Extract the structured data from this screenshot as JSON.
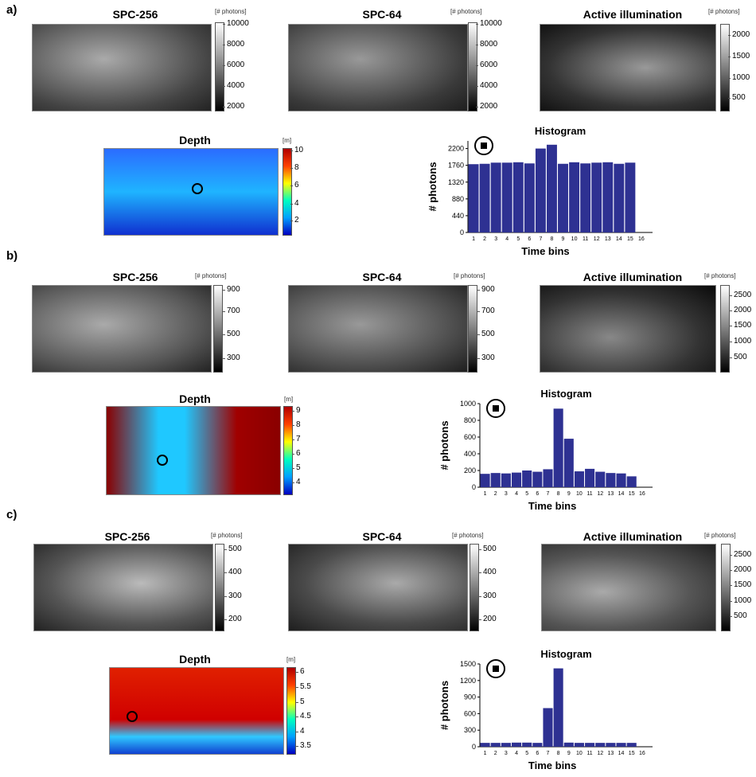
{
  "panels": [
    {
      "label": "a)",
      "spc256": {
        "title": "SPC-256",
        "unit": "[# photons]",
        "ticks": [
          "10000",
          "8000",
          "6000",
          "4000",
          "2000"
        ]
      },
      "spc64": {
        "title": "SPC-64",
        "unit": "[# photons]",
        "ticks": [
          "10000",
          "8000",
          "6000",
          "4000",
          "2000"
        ]
      },
      "active": {
        "title": "Active illumination",
        "unit": "[# photons]",
        "ticks": [
          "2000",
          "1500",
          "1000",
          "500"
        ]
      },
      "depth": {
        "title": "Depth",
        "unit": "[m]",
        "ticks": [
          "10",
          "8",
          "6",
          "4",
          "2"
        ]
      }
    },
    {
      "label": "b)",
      "spc256": {
        "title": "SPC-256",
        "unit": "[# photons]",
        "ticks": [
          "900",
          "700",
          "500",
          "300"
        ]
      },
      "spc64": {
        "title": "SPC-64",
        "unit": "[# photons]",
        "ticks": [
          "900",
          "700",
          "500",
          "300"
        ]
      },
      "active": {
        "title": "Active illumination",
        "unit": "[# photons]",
        "ticks": [
          "2500",
          "2000",
          "1500",
          "1000",
          "500"
        ]
      },
      "depth": {
        "title": "Depth",
        "unit": "[m]",
        "ticks": [
          "9",
          "8",
          "7",
          "6",
          "5",
          "4"
        ]
      }
    },
    {
      "label": "c)",
      "spc256": {
        "title": "SPC-256",
        "unit": "[# photons]",
        "ticks": [
          "500",
          "400",
          "300",
          "200"
        ]
      },
      "spc64": {
        "title": "SPC-64",
        "unit": "[# photons]",
        "ticks": [
          "500",
          "400",
          "300",
          "200"
        ]
      },
      "active": {
        "title": "Active illumination",
        "unit": "[# photons]",
        "ticks": [
          "2500",
          "2000",
          "1500",
          "1000",
          "500"
        ]
      },
      "depth": {
        "title": "Depth",
        "unit": "[m]",
        "ticks": [
          "6",
          "5.5",
          "5",
          "4.5",
          "4",
          "3.5"
        ]
      }
    }
  ],
  "colors": {
    "bar": "#2e3192",
    "marker": "#000000"
  },
  "chart_data": [
    {
      "type": "bar",
      "title": "Histogram",
      "xlabel": "Time bins",
      "ylabel": "# photons",
      "categories": [
        "1",
        "2",
        "3",
        "4",
        "5",
        "6",
        "7",
        "8",
        "9",
        "10",
        "11",
        "12",
        "13",
        "14",
        "15",
        "16"
      ],
      "values": [
        1790,
        1800,
        1830,
        1830,
        1840,
        1810,
        2200,
        2300,
        1800,
        1840,
        1810,
        1830,
        1840,
        1800,
        1830,
        0
      ],
      "yticks": [
        "0",
        "440",
        "880",
        "1320",
        "1760",
        "2200"
      ],
      "ylim": [
        0,
        2400
      ]
    },
    {
      "type": "bar",
      "title": "Histogram",
      "xlabel": "Time bins",
      "ylabel": "# photons",
      "categories": [
        "1",
        "2",
        "3",
        "4",
        "5",
        "6",
        "7",
        "8",
        "9",
        "10",
        "11",
        "12",
        "13",
        "14",
        "15",
        "16"
      ],
      "values": [
        160,
        170,
        165,
        175,
        200,
        185,
        215,
        940,
        580,
        190,
        220,
        185,
        170,
        165,
        130,
        0
      ],
      "yticks": [
        "0",
        "200",
        "400",
        "600",
        "800",
        "1000"
      ],
      "ylim": [
        0,
        1000
      ]
    },
    {
      "type": "bar",
      "title": "Histogram",
      "xlabel": "Time bins",
      "ylabel": "# photons",
      "categories": [
        "1",
        "2",
        "3",
        "4",
        "5",
        "6",
        "7",
        "8",
        "9",
        "10",
        "11",
        "12",
        "13",
        "14",
        "15",
        "16"
      ],
      "values": [
        70,
        70,
        70,
        75,
        75,
        70,
        700,
        1420,
        75,
        70,
        70,
        70,
        70,
        70,
        70,
        0
      ],
      "yticks": [
        "0",
        "300",
        "600",
        "900",
        "1200",
        "1500"
      ],
      "ylim": [
        0,
        1500
      ]
    }
  ]
}
